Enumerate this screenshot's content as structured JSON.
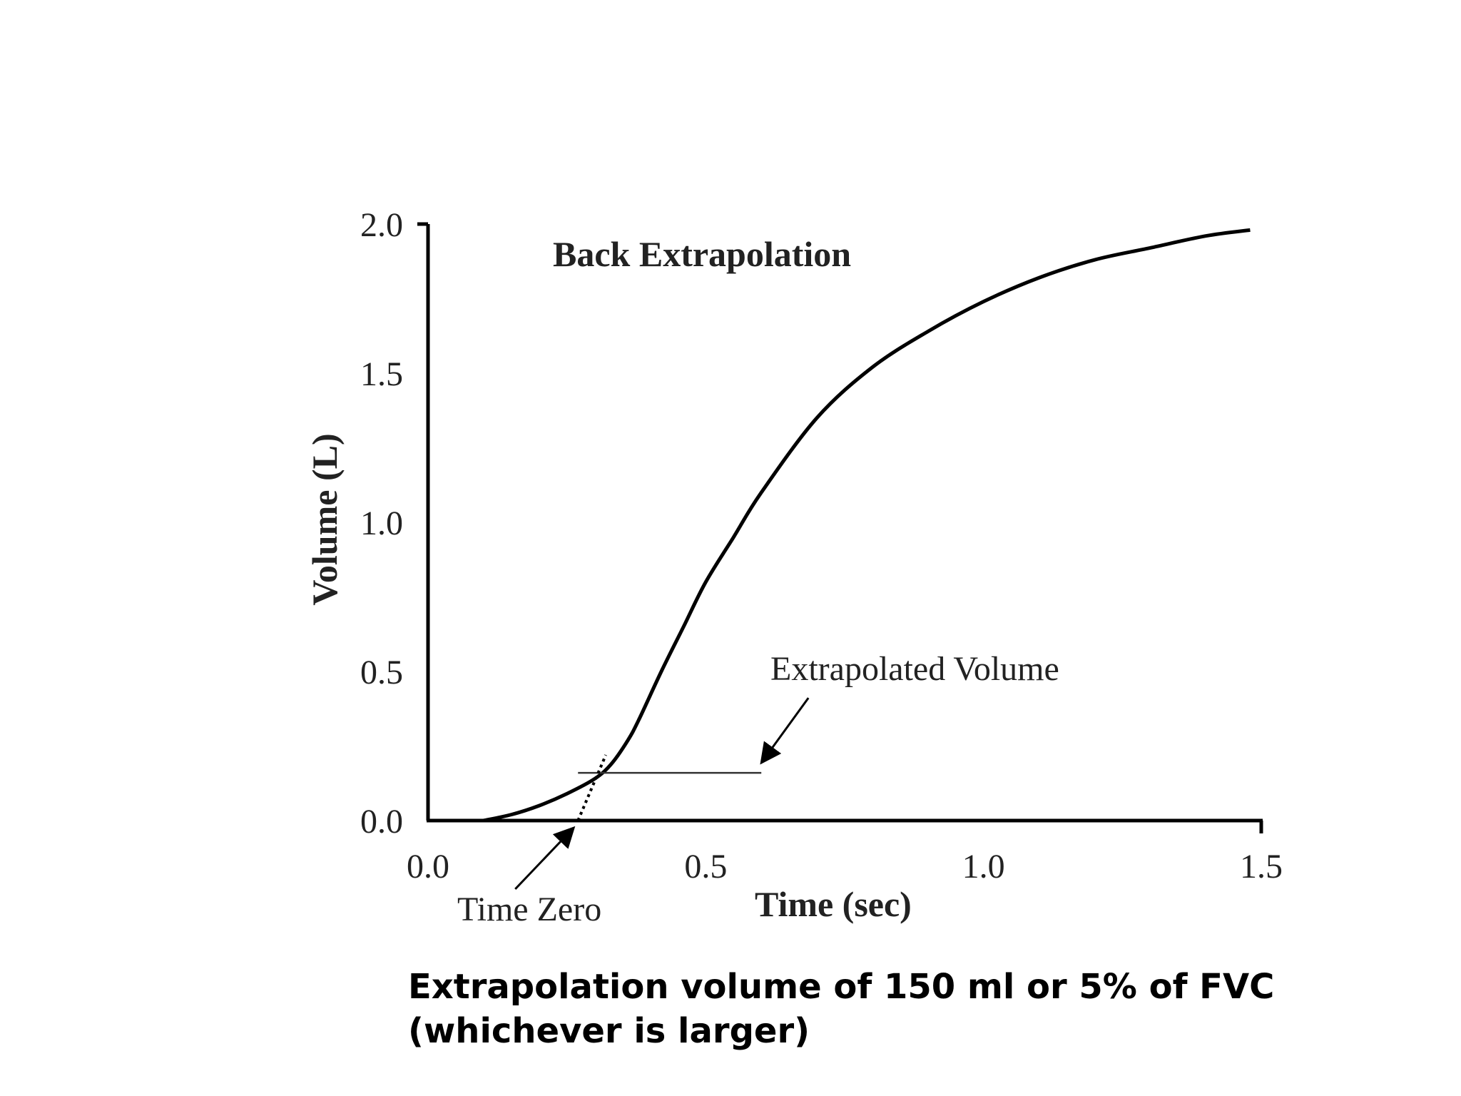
{
  "chart_data": {
    "type": "line",
    "title": "Back Extrapolation",
    "xlabel": "Time (sec)",
    "ylabel": "Volume (L)",
    "xlim": [
      0.0,
      1.5
    ],
    "ylim": [
      0.0,
      2.0
    ],
    "x_ticks": [
      "0.0",
      "0.5",
      "1.0",
      "1.5"
    ],
    "y_ticks": [
      "0.0",
      "0.5",
      "1.0",
      "1.5",
      "2.0"
    ],
    "grid": false,
    "series": [
      {
        "x": [
          0.1,
          0.15,
          0.2,
          0.25,
          0.3,
          0.33,
          0.36,
          0.38,
          0.42,
          0.46,
          0.5,
          0.55,
          0.6,
          0.7,
          0.8,
          0.9,
          1.0,
          1.1,
          1.2,
          1.3,
          1.4,
          1.48
        ],
        "y": [
          0.0,
          0.02,
          0.05,
          0.09,
          0.14,
          0.19,
          0.27,
          0.34,
          0.5,
          0.65,
          0.8,
          0.95,
          1.1,
          1.35,
          1.52,
          1.64,
          1.74,
          1.82,
          1.88,
          1.92,
          1.96,
          1.98
        ]
      }
    ],
    "annotations": [
      {
        "text": "Extrapolated Volume",
        "x": 0.6,
        "y": 0.16
      },
      {
        "text": "Time Zero",
        "x": 0.27,
        "y": 0.0
      }
    ],
    "extrapolation_line": {
      "x": [
        0.27,
        0.32
      ],
      "y": [
        0.0,
        0.22
      ]
    },
    "extrapolated_volume_level": {
      "x": [
        0.27,
        0.6
      ],
      "y": [
        0.16,
        0.16
      ]
    }
  },
  "caption": "Extrapolation volume of 150 ml or 5% of FVC (whichever is larger)"
}
